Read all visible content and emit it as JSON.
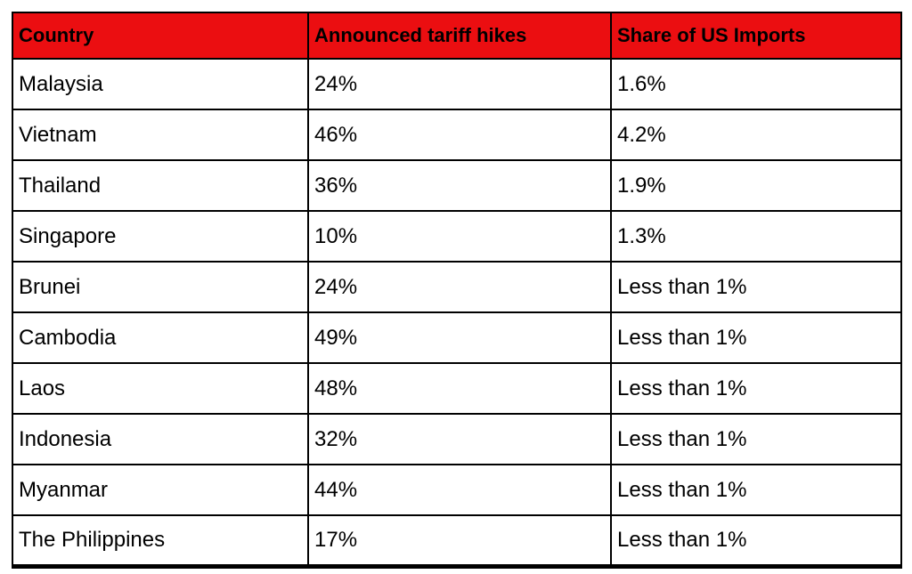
{
  "colors": {
    "header_background": "#eb0e11",
    "header_text": "#000000",
    "body_text": "#000000",
    "grid_border": "#000000",
    "page_background": "#ffffff"
  },
  "chart_data": {
    "type": "table",
    "title": "",
    "columns": [
      "Country",
      "Announced tariff hikes",
      "Share of US Imports"
    ],
    "rows": [
      [
        "Malaysia",
        "24%",
        "1.6%"
      ],
      [
        "Vietnam",
        "46%",
        "4.2%"
      ],
      [
        "Thailand",
        "36%",
        "1.9%"
      ],
      [
        "Singapore",
        "10%",
        "1.3%"
      ],
      [
        "Brunei",
        "24%",
        "Less than 1%"
      ],
      [
        "Cambodia",
        "49%",
        "Less than 1%"
      ],
      [
        "Laos",
        "48%",
        "Less than 1%"
      ],
      [
        "Indonesia",
        "32%",
        "Less than 1%"
      ],
      [
        "Myanmar",
        "44%",
        "Less than 1%"
      ],
      [
        "The Philippines",
        "17%",
        "Less than 1%"
      ]
    ],
    "layout": {
      "legend": "none",
      "grid": "full black borders",
      "header_style": "red fill, bold black text, left-aligned"
    }
  }
}
